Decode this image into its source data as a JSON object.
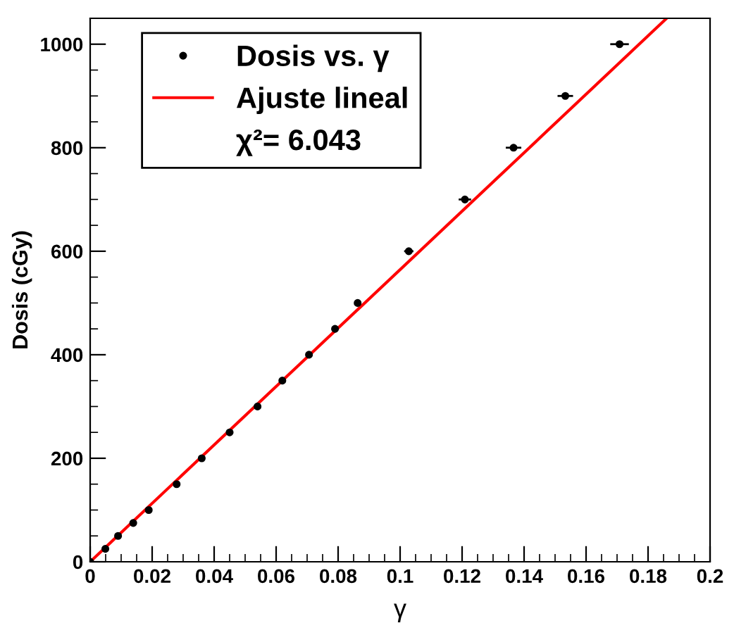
{
  "chart_data": {
    "type": "scatter",
    "xlabel": "γ",
    "ylabel": "Dosis (cGy)",
    "series": [
      {
        "name": "Dosis vs. γ",
        "marker": "circle",
        "color": "#000000",
        "x": [
          0,
          0.0049,
          0.009,
          0.0139,
          0.0189,
          0.0279,
          0.036,
          0.045,
          0.054,
          0.062,
          0.0706,
          0.079,
          0.0863,
          0.1028,
          0.1209,
          0.1366,
          0.1533,
          0.1708
        ],
        "values": [
          0,
          25,
          50,
          75,
          100,
          150,
          200,
          250,
          300,
          350,
          400,
          450,
          500,
          600,
          700,
          800,
          900,
          1000
        ],
        "xerrors": [
          null,
          null,
          null,
          null,
          null,
          null,
          null,
          null,
          null,
          null,
          null,
          0.001,
          0.001,
          0.0015,
          0.002,
          0.0025,
          0.0025,
          0.003
        ]
      },
      {
        "name": "Ajuste lineal",
        "type": "line",
        "color": "#ff0000",
        "x": [
          0,
          0.186
        ],
        "values": [
          0,
          1050
        ]
      }
    ],
    "annotations": [
      "χ²= 6.043"
    ],
    "xlim": [
      0,
      0.2
    ],
    "ylim": [
      0,
      1050
    ],
    "xticks": [
      0,
      0.02,
      0.04,
      0.06,
      0.08,
      0.1,
      0.12,
      0.14,
      0.16,
      0.18,
      0.2
    ],
    "yticks": [
      0,
      200,
      400,
      600,
      800,
      1000
    ],
    "grid": false,
    "legend": "top left"
  }
}
